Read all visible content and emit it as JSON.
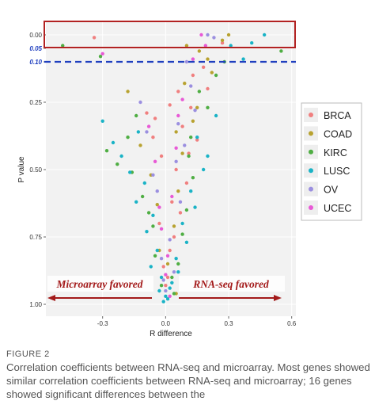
{
  "chart_data": {
    "type": "scatter",
    "xlabel": "R difference",
    "ylabel": "P value",
    "xlim": [
      -0.57,
      0.62
    ],
    "ylim": [
      0,
      1.0
    ],
    "y_reversed": true,
    "x_ticks": [
      "-0.3",
      "0.0",
      "0.3",
      "0.6"
    ],
    "x_tick_values": [
      -0.3,
      0.0,
      0.3,
      0.6
    ],
    "y_ticks": [
      "0.00",
      "0.05",
      "0.10",
      "0.25",
      "0.50",
      "0.75",
      "1.00"
    ],
    "y_tick_values": [
      0.0,
      0.05,
      0.1,
      0.25,
      0.5,
      0.75,
      1.0
    ],
    "threshold_p": 0.1,
    "threshold_color": "#1f3fbf",
    "highlight_box_color": "#b22222",
    "grid": true,
    "background": "#f2f2f2",
    "legend_position": "right",
    "annotation_left": "Microarray favored",
    "annotation_right": "RNA-seq favored",
    "annotation_color": "#a31a1a",
    "series": [
      {
        "name": "BRCA",
        "color": "#f07f7f",
        "points": [
          [
            -0.34,
            0.01
          ],
          [
            0.27,
            0.03
          ],
          [
            0.12,
            0.27
          ],
          [
            0.08,
            0.34
          ],
          [
            -0.05,
            0.31
          ],
          [
            0.02,
            0.26
          ],
          [
            -0.02,
            0.45
          ],
          [
            0.05,
            0.5
          ],
          [
            0.15,
            0.39
          ],
          [
            0.03,
            0.62
          ],
          [
            -0.03,
            0.7
          ],
          [
            0.04,
            0.75
          ],
          [
            0.02,
            0.8
          ],
          [
            -0.01,
            0.86
          ],
          [
            0.01,
            0.9
          ],
          [
            0.13,
            0.15
          ],
          [
            0.2,
            0.2
          ],
          [
            0.06,
            0.21
          ],
          [
            -0.06,
            0.38
          ],
          [
            0.1,
            0.55
          ],
          [
            0.07,
            0.66
          ],
          [
            0.0,
            0.93
          ],
          [
            -0.09,
            0.29
          ],
          [
            0.18,
            0.12
          ],
          [
            0.11,
            0.44
          ]
        ]
      },
      {
        "name": "COAD",
        "color": "#b8a230",
        "points": [
          [
            0.1,
            0.04
          ],
          [
            0.05,
            0.36
          ],
          [
            0.2,
            0.09
          ],
          [
            -0.18,
            0.21
          ],
          [
            0.3,
            0.0
          ],
          [
            0.13,
            0.32
          ],
          [
            -0.07,
            0.52
          ],
          [
            0.04,
            0.71
          ],
          [
            0.08,
            0.44
          ],
          [
            0.16,
            0.06
          ],
          [
            0.22,
            0.14
          ],
          [
            -0.03,
            0.8
          ],
          [
            0.01,
            0.85
          ],
          [
            0.06,
            0.58
          ],
          [
            -0.04,
            0.63
          ],
          [
            0.15,
            0.27
          ],
          [
            0.09,
            0.18
          ],
          [
            0.27,
            0.02
          ],
          [
            -0.12,
            0.41
          ],
          [
            0.05,
            0.96
          ]
        ]
      },
      {
        "name": "KIRC",
        "color": "#4fae43",
        "points": [
          [
            -0.49,
            0.04
          ],
          [
            -0.31,
            0.08
          ],
          [
            0.55,
            0.06
          ],
          [
            -0.18,
            0.38
          ],
          [
            0.12,
            0.38
          ],
          [
            -0.08,
            0.66
          ],
          [
            0.1,
            0.65
          ],
          [
            -0.05,
            0.82
          ],
          [
            0.06,
            0.85
          ],
          [
            0.03,
            0.9
          ],
          [
            -0.23,
            0.48
          ],
          [
            0.2,
            0.27
          ],
          [
            -0.28,
            0.43
          ],
          [
            0.16,
            0.21
          ],
          [
            0.13,
            0.53
          ],
          [
            -0.11,
            0.6
          ],
          [
            0.08,
            0.74
          ],
          [
            -0.02,
            0.93
          ],
          [
            0.24,
            0.15
          ],
          [
            -0.14,
            0.3
          ],
          [
            0.04,
            0.96
          ],
          [
            -0.06,
            0.71
          ],
          [
            0.28,
            0.1
          ],
          [
            0.11,
            0.45
          ],
          [
            -0.16,
            0.51
          ]
        ]
      },
      {
        "name": "LUSC",
        "color": "#1ab3c6",
        "points": [
          [
            0.47,
            0.0
          ],
          [
            0.31,
            0.04
          ],
          [
            0.41,
            0.03
          ],
          [
            -0.13,
            0.36
          ],
          [
            0.15,
            0.38
          ],
          [
            -0.21,
            0.45
          ],
          [
            0.18,
            0.5
          ],
          [
            -0.1,
            0.55
          ],
          [
            0.12,
            0.58
          ],
          [
            -0.06,
            0.67
          ],
          [
            0.08,
            0.7
          ],
          [
            -0.04,
            0.8
          ],
          [
            0.05,
            0.83
          ],
          [
            -0.02,
            0.9
          ],
          [
            0.02,
            0.94
          ],
          [
            0.0,
            0.97
          ],
          [
            -0.01,
            0.99
          ],
          [
            0.01,
            0.98
          ],
          [
            -0.25,
            0.4
          ],
          [
            0.24,
            0.3
          ],
          [
            -0.17,
            0.51
          ],
          [
            0.2,
            0.45
          ],
          [
            -0.14,
            0.62
          ],
          [
            0.14,
            0.64
          ],
          [
            -0.09,
            0.73
          ],
          [
            0.1,
            0.77
          ],
          [
            -0.07,
            0.86
          ],
          [
            0.06,
            0.88
          ],
          [
            -0.03,
            0.95
          ],
          [
            0.03,
            0.92
          ],
          [
            0.37,
            0.09
          ],
          [
            -0.3,
            0.32
          ]
        ]
      },
      {
        "name": "OV",
        "color": "#9b8fe0",
        "points": [
          [
            0.2,
            0.0
          ],
          [
            0.1,
            0.1
          ],
          [
            -0.09,
            0.36
          ],
          [
            0.14,
            0.28
          ],
          [
            0.05,
            0.47
          ],
          [
            -0.04,
            0.58
          ],
          [
            0.07,
            0.62
          ],
          [
            0.02,
            0.76
          ],
          [
            -0.02,
            0.83
          ],
          [
            0.04,
            0.88
          ],
          [
            0.0,
            0.95
          ],
          [
            -0.06,
            0.52
          ],
          [
            0.09,
            0.41
          ],
          [
            0.23,
            0.01
          ],
          [
            -0.12,
            0.25
          ],
          [
            0.12,
            0.19
          ],
          [
            0.06,
            0.33
          ],
          [
            -0.01,
            0.91
          ]
        ]
      },
      {
        "name": "UCEC",
        "color": "#e85ad6",
        "points": [
          [
            0.17,
            0.0
          ],
          [
            -0.3,
            0.07
          ],
          [
            0.19,
            0.04
          ],
          [
            0.06,
            0.3
          ],
          [
            0.05,
            0.42
          ],
          [
            -0.05,
            0.47
          ],
          [
            0.03,
            0.6
          ],
          [
            -0.02,
            0.72
          ],
          [
            0.01,
            0.82
          ],
          [
            0.0,
            0.89
          ],
          [
            0.08,
            0.24
          ],
          [
            -0.08,
            0.34
          ],
          [
            0.13,
            0.09
          ],
          [
            0.02,
            0.97
          ],
          [
            -0.03,
            0.64
          ]
        ]
      }
    ]
  },
  "caption": {
    "label": "FIGURE 2",
    "text": "Correlation coefficients between RNA-seq and microarray. Most genes showed similar correlation coefficients between RNA-seq and microarray; 16 genes showed significant differences between the"
  }
}
